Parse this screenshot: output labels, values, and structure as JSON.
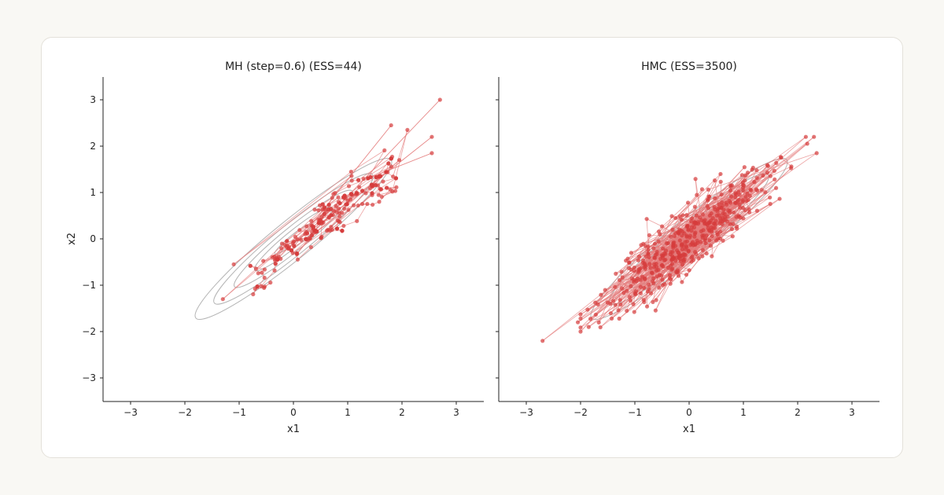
{
  "chart_data": [
    {
      "type": "scatter",
      "title": "MH (step=0.6)  (ESS=44)",
      "xlabel": "x1",
      "ylabel": "x2",
      "xlim": [
        -3.5,
        3.5
      ],
      "ylim": [
        -3.5,
        3.5
      ],
      "xticks": [
        "−3",
        "−2",
        "−1",
        "0",
        "1",
        "2",
        "3"
      ],
      "yticks": [
        "−3",
        "−2",
        "−1",
        "0",
        "1",
        "2",
        "3"
      ],
      "grid": false,
      "contour_shape": "correlated-gaussian-ellipses",
      "trace_connected": true,
      "n_points_approx": 260,
      "notable_points": [
        [
          2.7,
          3.0
        ],
        [
          2.55,
          2.2
        ],
        [
          2.55,
          1.85
        ],
        [
          2.1,
          2.35
        ],
        [
          1.8,
          2.45
        ],
        [
          -1.3,
          -1.3
        ],
        [
          -1.1,
          -0.55
        ],
        [
          1.95,
          1.7
        ]
      ],
      "bulk_x_range": [
        -0.8,
        1.9
      ],
      "bulk_correlation": 0.85
    },
    {
      "type": "scatter",
      "title": "HMC  (ESS=3500)",
      "xlabel": "x1",
      "ylabel": "",
      "xlim": [
        -3.5,
        3.5
      ],
      "ylim": [
        -3.5,
        3.5
      ],
      "xticks": [
        "−3",
        "−2",
        "−1",
        "0",
        "1",
        "2",
        "3"
      ],
      "yticks": [],
      "grid": false,
      "contour_shape": "correlated-gaussian-ellipses",
      "trace_connected": true,
      "n_points_approx": 450,
      "notable_points": [
        [
          -2.7,
          -2.2
        ],
        [
          2.35,
          1.85
        ],
        [
          2.15,
          2.2
        ],
        [
          -1.85,
          -1.9
        ],
        [
          -2.05,
          -1.8
        ]
      ],
      "bulk_x_range": [
        -2.0,
        2.3
      ],
      "bulk_correlation": 0.9
    }
  ],
  "colors": {
    "points": "#d63c3c",
    "lines": "#e47b7b",
    "contours": "#b4b4b4",
    "axes": "#222222",
    "card_bg": "#ffffff",
    "page_bg": "#f9f8f4"
  }
}
